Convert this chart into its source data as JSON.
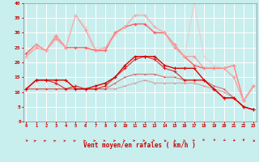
{
  "x": [
    0,
    1,
    2,
    3,
    4,
    5,
    6,
    7,
    8,
    9,
    10,
    11,
    12,
    13,
    14,
    15,
    16,
    17,
    18,
    19,
    20,
    21,
    22,
    23
  ],
  "xlabel": "Vent moyen/en rafales ( km/h )",
  "xlim": [
    -0.3,
    23.3
  ],
  "ylim": [
    0,
    40
  ],
  "yticks": [
    0,
    5,
    10,
    15,
    20,
    25,
    30,
    35,
    40
  ],
  "background": "#c8eeee",
  "grid_color": "#ffffff",
  "lines": [
    {
      "y": [
        11,
        14,
        14,
        14,
        14,
        11,
        11,
        12,
        13,
        15,
        19,
        22,
        22,
        22,
        19,
        18,
        18,
        18,
        14,
        11,
        8,
        8,
        5,
        4
      ],
      "color": "#dd0000",
      "linewidth": 1.0,
      "marker": "+",
      "markersize": 3.0,
      "alpha": 1.0
    },
    {
      "y": [
        11,
        14,
        14,
        13,
        11,
        12,
        11,
        11,
        12,
        15,
        18,
        21,
        22,
        21,
        18,
        17,
        14,
        14,
        14,
        11,
        8,
        8,
        5,
        4
      ],
      "color": "#dd0000",
      "linewidth": 0.9,
      "marker": "+",
      "markersize": 2.5,
      "alpha": 0.75
    },
    {
      "y": [
        11,
        11,
        11,
        11,
        11,
        11,
        11,
        11,
        11,
        13,
        15,
        16,
        16,
        16,
        15,
        15,
        14,
        14,
        14,
        12,
        11,
        8,
        5,
        4
      ],
      "color": "#dd0000",
      "linewidth": 0.8,
      "marker": "+",
      "markersize": 2.0,
      "alpha": 0.5
    },
    {
      "y": [
        11,
        11,
        11,
        11,
        11,
        11,
        11,
        11,
        11,
        11,
        12,
        13,
        14,
        13,
        13,
        13,
        13,
        13,
        12,
        11,
        10,
        8,
        5,
        4
      ],
      "color": "#dd0000",
      "linewidth": 0.8,
      "marker": "+",
      "markersize": 1.5,
      "alpha": 0.3
    },
    {
      "y": [
        23,
        26,
        24,
        29,
        25,
        25,
        25,
        24,
        24,
        30,
        32,
        33,
        33,
        30,
        30,
        26,
        22,
        19,
        18,
        18,
        18,
        19,
        7,
        12
      ],
      "color": "#ff5555",
      "linewidth": 1.0,
      "marker": "+",
      "markersize": 3.0,
      "alpha": 0.9
    },
    {
      "y": [
        22,
        25,
        24,
        28,
        25,
        36,
        31,
        24,
        25,
        30,
        32,
        36,
        36,
        32,
        30,
        25,
        22,
        22,
        18,
        18,
        18,
        15,
        7,
        12
      ],
      "color": "#ff8888",
      "linewidth": 0.9,
      "marker": "+",
      "markersize": 2.5,
      "alpha": 0.75
    },
    {
      "y": [
        22,
        26,
        24,
        29,
        25,
        36,
        32,
        25,
        25,
        29,
        32,
        36,
        36,
        32,
        30,
        26,
        22,
        40,
        22,
        19,
        18,
        19,
        7,
        12
      ],
      "color": "#ffbbbb",
      "linewidth": 0.8,
      "marker": "+",
      "markersize": 2.0,
      "alpha": 0.6
    }
  ],
  "wind_angles": [
    225,
    215,
    215,
    215,
    210,
    210,
    205,
    200,
    195,
    180,
    170,
    165,
    155,
    150,
    140,
    130,
    115,
    105,
    95,
    85,
    80,
    75,
    90,
    135
  ]
}
